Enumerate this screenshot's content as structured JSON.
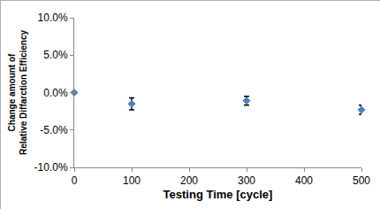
{
  "chart_data": {
    "type": "scatter",
    "x_label": "Testing Time [cycle]",
    "y_label": "Change amount of\nRelative Diffarction Efficiency",
    "x": [
      0,
      100,
      300,
      500
    ],
    "values": [
      0,
      -1.5,
      -1.1,
      -2.3
    ],
    "errors": [
      0,
      0.8,
      0.6,
      0.6
    ],
    "color": "#4f81bd",
    "marker": "diamond",
    "xlim": [
      0,
      500
    ],
    "xticks": [
      0,
      100,
      200,
      300,
      400,
      500
    ],
    "ylim": [
      -10,
      10
    ],
    "yticks": [
      {
        "value": -10,
        "label": "-10.0%"
      },
      {
        "value": -5,
        "label": "-5.0%"
      },
      {
        "value": 0,
        "label": "0.0%"
      },
      {
        "value": 5,
        "label": "5.0%"
      },
      {
        "value": 10,
        "label": "10.0%"
      }
    ],
    "grid": false
  }
}
